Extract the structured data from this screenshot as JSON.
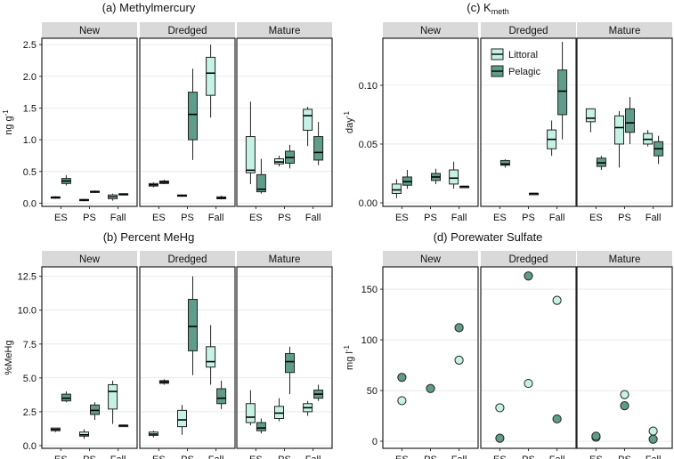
{
  "figure": {
    "background": "#ffffff"
  },
  "colors": {
    "littoral": "#c6f2e6",
    "pelagic": "#5f9c8a",
    "strip": "#d9d9d9",
    "stroke": "#222222",
    "grid": "#dddddd"
  },
  "legend": {
    "entries": [
      "Littoral",
      "Pelagic"
    ]
  },
  "chart_data": [
    {
      "id": "a",
      "type": "box",
      "title": "(a) Methylmercury",
      "ylabel_main": "ng g",
      "ylabel_sup": "-1",
      "ylim": [
        -0.05,
        2.6
      ],
      "yticks": [
        "0.0",
        "0.5",
        "1.0",
        "1.5",
        "2.0",
        "2.5"
      ],
      "facets": [
        "New",
        "Dredged",
        "Mature"
      ],
      "categories": [
        "ES",
        "PS",
        "Fall"
      ],
      "series": [
        {
          "name": "Littoral",
          "boxes": [
            [
              [
                0.07,
                0.08,
                0.09,
                0.1,
                0.11
              ],
              [
                0.03,
                0.04,
                0.05,
                0.06,
                0.07
              ],
              [
                0.04,
                0.07,
                0.1,
                0.13,
                0.15
              ]
            ],
            [
              [
                0.25,
                0.27,
                0.29,
                0.31,
                0.33
              ],
              [
                0.1,
                0.11,
                0.12,
                0.13,
                0.14
              ],
              [
                1.35,
                1.7,
                2.05,
                2.3,
                2.5
              ]
            ],
            [
              [
                0.3,
                0.48,
                0.52,
                1.05,
                1.6
              ],
              [
                0.58,
                0.62,
                0.65,
                0.7,
                0.75
              ],
              [
                0.9,
                1.15,
                1.38,
                1.48,
                1.52
              ]
            ]
          ]
        },
        {
          "name": "Pelagic",
          "boxes": [
            [
              [
                0.28,
                0.31,
                0.35,
                0.39,
                0.44
              ],
              [
                0.16,
                0.17,
                0.18,
                0.19,
                0.2
              ],
              [
                0.13,
                0.14,
                0.14,
                0.15,
                0.15
              ]
            ],
            [
              [
                0.3,
                0.31,
                0.33,
                0.35,
                0.37
              ],
              [
                0.68,
                1.0,
                1.4,
                1.75,
                2.12
              ],
              [
                0.06,
                0.07,
                0.08,
                0.1,
                0.12
              ]
            ],
            [
              [
                0.15,
                0.18,
                0.22,
                0.45,
                0.7
              ],
              [
                0.55,
                0.63,
                0.72,
                0.82,
                0.92
              ],
              [
                0.6,
                0.68,
                0.8,
                1.05,
                1.28
              ]
            ]
          ]
        }
      ]
    },
    {
      "id": "c",
      "type": "box",
      "title": "(c) K",
      "title_sub": "meth",
      "ylabel_main": "day",
      "ylabel_sup": "-1",
      "ylim": [
        -0.003,
        0.14
      ],
      "yticks": [
        "0.00",
        "0.05",
        "0.10"
      ],
      "facets": [
        "New",
        "Dredged",
        "Mature"
      ],
      "categories": [
        "ES",
        "PS",
        "Fall"
      ],
      "legend": true,
      "series": [
        {
          "name": "Littoral",
          "boxes": [
            [
              [
                0.004,
                0.008,
                0.011,
                0.016,
                0.02
              ],
              null,
              [
                0.012,
                0.016,
                0.021,
                0.028,
                0.035
              ]
            ],
            [
              null,
              null,
              [
                0.04,
                0.046,
                0.054,
                0.062,
                0.07
              ]
            ],
            [
              [
                0.06,
                0.069,
                0.072,
                0.08,
                0.08
              ],
              [
                0.03,
                0.05,
                0.064,
                0.074,
                0.078
              ],
              [
                0.048,
                0.05,
                0.054,
                0.059,
                0.062
              ]
            ]
          ]
        },
        {
          "name": "Pelagic",
          "boxes": [
            [
              [
                0.012,
                0.015,
                0.018,
                0.022,
                0.028
              ],
              [
                0.016,
                0.019,
                0.022,
                0.025,
                0.029
              ],
              [
                0.013,
                0.013,
                0.014,
                0.014,
                0.014
              ]
            ],
            [
              [
                0.03,
                0.032,
                0.033,
                0.036,
                0.037
              ],
              [
                0.008,
                0.008,
                0.008,
                0.008,
                0.008
              ],
              [
                0.054,
                0.075,
                0.095,
                0.113,
                0.137
              ]
            ],
            [
              [
                0.028,
                0.031,
                0.034,
                0.038,
                0.04
              ],
              [
                0.05,
                0.06,
                0.068,
                0.08,
                0.09
              ],
              [
                0.033,
                0.04,
                0.046,
                0.052,
                0.057
              ]
            ]
          ]
        }
      ]
    },
    {
      "id": "b",
      "type": "box",
      "title": "(b) Percent MeHg",
      "ylabel_main": "%MeHg",
      "ylabel_sup": "",
      "ylim": [
        -0.2,
        13.2
      ],
      "yticks": [
        "0.0",
        "2.5",
        "5.0",
        "7.5",
        "10.0",
        "12.5"
      ],
      "facets": [
        "New",
        "Dredged",
        "Mature"
      ],
      "categories": [
        "ES",
        "PS",
        "Fall"
      ],
      "series": [
        {
          "name": "Littoral",
          "boxes": [
            [
              [
                1.0,
                1.1,
                1.2,
                1.3,
                1.3
              ],
              [
                0.5,
                0.7,
                0.8,
                1.0,
                1.2
              ],
              [
                1.6,
                2.7,
                4.0,
                4.5,
                4.8
              ]
            ],
            [
              [
                0.6,
                0.75,
                0.85,
                1.0,
                1.1
              ],
              [
                0.8,
                1.4,
                1.9,
                2.6,
                3.0
              ],
              [
                4.5,
                5.8,
                6.2,
                7.3,
                8.9
              ]
            ],
            [
              [
                1.5,
                1.7,
                2.1,
                3.1,
                4.1
              ],
              [
                1.8,
                2.0,
                2.4,
                2.9,
                3.5
              ],
              [
                2.2,
                2.5,
                2.8,
                3.1,
                3.3
              ]
            ]
          ]
        },
        {
          "name": "Pelagic",
          "boxes": [
            [
              [
                3.2,
                3.3,
                3.5,
                3.8,
                4.0
              ],
              [
                1.9,
                2.3,
                2.6,
                3.0,
                3.2
              ],
              [
                1.5,
                1.5,
                1.5,
                1.5,
                1.5
              ]
            ],
            [
              [
                4.5,
                4.6,
                4.7,
                4.8,
                4.9
              ],
              [
                5.2,
                7.0,
                8.8,
                10.8,
                12.5
              ],
              [
                2.7,
                3.1,
                3.5,
                4.2,
                4.8
              ]
            ],
            [
              [
                0.9,
                1.1,
                1.3,
                1.7,
                2.0
              ],
              [
                3.8,
                5.4,
                6.2,
                6.8,
                7.3
              ],
              [
                3.3,
                3.5,
                3.8,
                4.1,
                4.5
              ]
            ]
          ]
        }
      ]
    },
    {
      "id": "d",
      "type": "scatter",
      "title": "(d) Porewater Sulfate",
      "ylabel_main": "mg l",
      "ylabel_sup": "-1",
      "ylim": [
        -7,
        172
      ],
      "yticks": [
        "0",
        "50",
        "100",
        "150"
      ],
      "facets": [
        "New",
        "Dredged",
        "Mature"
      ],
      "categories": [
        "ES",
        "PS",
        "Fall"
      ],
      "series": [
        {
          "name": "Littoral",
          "points": [
            [
              40,
              null,
              80
            ],
            [
              33,
              57,
              139
            ],
            [
              4,
              46,
              10
            ]
          ]
        },
        {
          "name": "Pelagic",
          "points": [
            [
              63,
              52,
              112
            ],
            [
              3,
              163,
              22
            ],
            [
              5,
              35,
              2
            ]
          ]
        }
      ]
    }
  ]
}
